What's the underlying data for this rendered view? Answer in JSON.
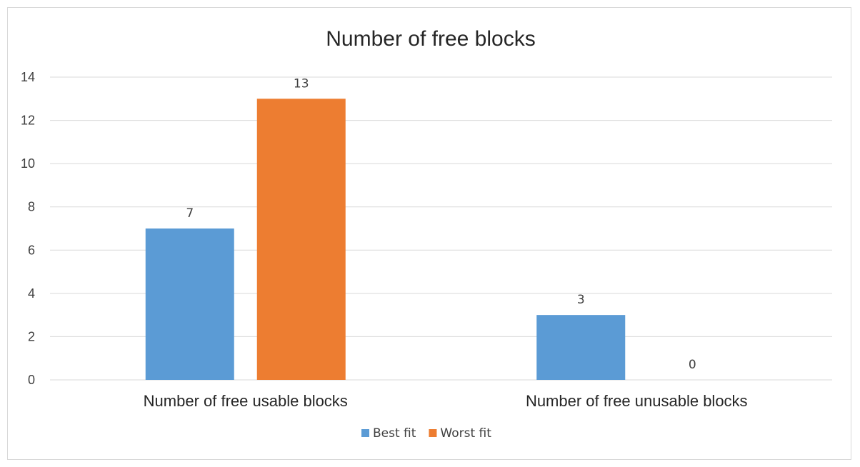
{
  "chart_data": {
    "type": "bar",
    "title": "Number of free blocks",
    "categories": [
      "Number of free usable blocks",
      "Number of free unusable blocks"
    ],
    "series": [
      {
        "name": "Best fit",
        "color": "#5b9bd5",
        "values": [
          7,
          3
        ]
      },
      {
        "name": "Worst fit",
        "color": "#ed7d31",
        "values": [
          13,
          0
        ]
      }
    ],
    "y_ticks": [
      "0",
      "2",
      "4",
      "6",
      "8",
      "10",
      "12",
      "14"
    ],
    "ylim": [
      0,
      14
    ],
    "grid": true,
    "legend": "bottom"
  }
}
